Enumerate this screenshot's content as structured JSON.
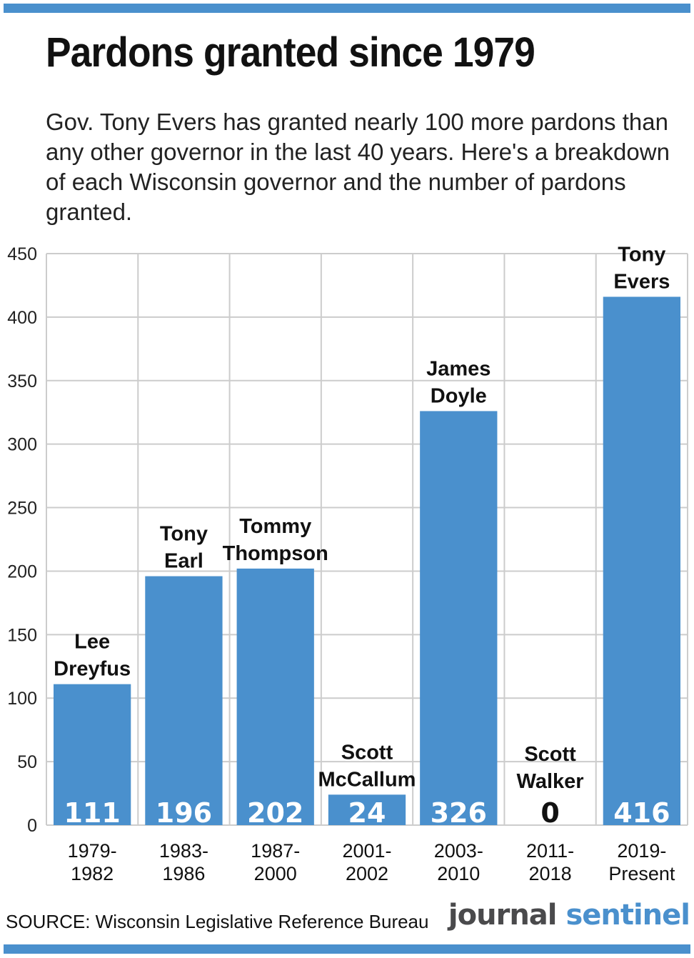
{
  "title": "Pardons granted since 1979",
  "subtitle": "Gov. Tony Evers has granted nearly 100 more pardons than any other governor in the last 40 years. Here's a breakdown of each Wisconsin governor and the number of pardons granted.",
  "source": "SOURCE: Wisconsin Legislative Reference Bureau",
  "logo": {
    "part1": "journal",
    "part2": "sentinel"
  },
  "colors": {
    "bar": "#4a90cd",
    "rule": "#4a90cd",
    "grid": "#cccccc"
  },
  "chart_data": {
    "type": "bar",
    "categories": [
      [
        "1979-",
        "1982"
      ],
      [
        "1983-",
        "1986"
      ],
      [
        "1987-",
        "2000"
      ],
      [
        "2001-",
        "2002"
      ],
      [
        "2003-",
        "2010"
      ],
      [
        "2011-",
        "2018"
      ],
      [
        "2019-",
        "Present"
      ]
    ],
    "governors": [
      [
        "Lee",
        "Dreyfus"
      ],
      [
        "Tony",
        "Earl"
      ],
      [
        "Tommy",
        "Thompson"
      ],
      [
        "Scott",
        "McCallum"
      ],
      [
        "James",
        "Doyle"
      ],
      [
        "Scott",
        "Walker"
      ],
      [
        "Tony",
        "Evers"
      ]
    ],
    "values": [
      111,
      196,
      202,
      24,
      326,
      0,
      416
    ],
    "ylim": [
      0,
      450
    ],
    "yticks": [
      0,
      50,
      100,
      150,
      200,
      250,
      300,
      350,
      400,
      450
    ],
    "grid": true,
    "xlabel": "",
    "ylabel": ""
  }
}
